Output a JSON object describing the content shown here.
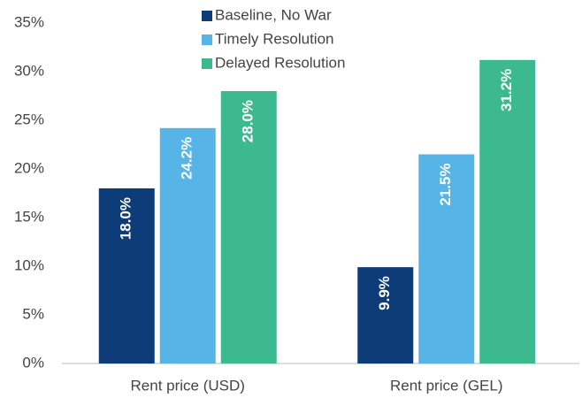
{
  "chart_data": {
    "type": "bar",
    "categories": [
      "Rent price (USD)",
      "Rent price (GEL)"
    ],
    "series": [
      {
        "name": "Baseline, No War",
        "color": "#0e3c78",
        "values": [
          18.0,
          9.9
        ],
        "value_labels": [
          "18.0%",
          "9.9%"
        ]
      },
      {
        "name": "Timely Resolution",
        "color": "#56b4e6",
        "values": [
          24.2,
          21.5
        ],
        "value_labels": [
          "24.2%",
          "21.5%"
        ]
      },
      {
        "name": "Delayed Resolution",
        "color": "#3cb98f",
        "values": [
          28.0,
          31.2
        ],
        "value_labels": [
          "28.0%",
          "31.2%"
        ]
      }
    ],
    "ylim": [
      0,
      35
    ],
    "yticks": [
      {
        "value": 0,
        "label": "0%"
      },
      {
        "value": 5,
        "label": "5%"
      },
      {
        "value": 10,
        "label": "10%"
      },
      {
        "value": 15,
        "label": "15%"
      },
      {
        "value": 20,
        "label": "20%"
      },
      {
        "value": 25,
        "label": "25%"
      },
      {
        "value": 30,
        "label": "30%"
      },
      {
        "value": 35,
        "label": "35%"
      }
    ],
    "grid": false,
    "legend": "top"
  }
}
